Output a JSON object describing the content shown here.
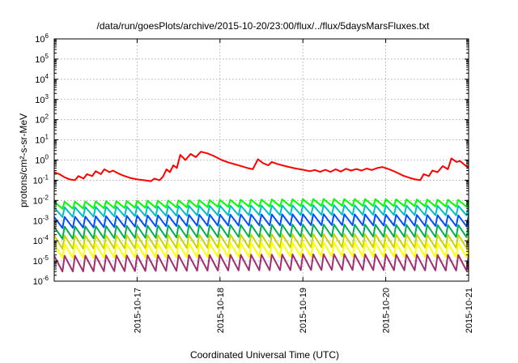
{
  "chart_data": {
    "type": "line",
    "title": "/data/run/goesPlots/archive/2015-10-20/23:00/flux/../flux/5daysMarsFluxes.txt",
    "xlabel": "Coordinated Universal Time (UTC)",
    "ylabel": "protons/cm²-s-sr-MeV",
    "x_range": [
      "2015-10-16 00:00",
      "2015-10-21 00:00"
    ],
    "x_ticks": [
      "2015-10-17",
      "2015-10-18",
      "2015-10-19",
      "2015-10-20",
      "2015-10-21"
    ],
    "y_scale": "log",
    "ylim": [
      1e-06,
      1000000.0
    ],
    "y_ticks": [
      {
        "base": "10",
        "exp": "-6"
      },
      {
        "base": "10",
        "exp": "-5"
      },
      {
        "base": "10",
        "exp": "-4"
      },
      {
        "base": "10",
        "exp": "-3"
      },
      {
        "base": "10",
        "exp": "-2"
      },
      {
        "base": "10",
        "exp": "-1"
      },
      {
        "base": "10",
        "exp": "0"
      },
      {
        "base": "10",
        "exp": "1"
      },
      {
        "base": "10",
        "exp": "2"
      },
      {
        "base": "10",
        "exp": "3"
      },
      {
        "base": "10",
        "exp": "4"
      },
      {
        "base": "10",
        "exp": "5"
      },
      {
        "base": "10",
        "exp": "6"
      }
    ],
    "grid": true,
    "series": [
      {
        "color": "#ff0000",
        "points": [
          [
            "2015-10-16 00:00",
            0.25
          ],
          [
            "2015-10-16 01:30",
            0.2
          ],
          [
            "2015-10-16 03:00",
            0.14
          ],
          [
            "2015-10-16 04:30",
            0.11
          ],
          [
            "2015-10-16 06:00",
            0.1
          ],
          [
            "2015-10-16 07:00",
            0.16
          ],
          [
            "2015-10-16 08:30",
            0.12
          ],
          [
            "2015-10-16 09:30",
            0.2
          ],
          [
            "2015-10-16 11:00",
            0.16
          ],
          [
            "2015-10-16 12:00",
            0.28
          ],
          [
            "2015-10-16 13:30",
            0.2
          ],
          [
            "2015-10-16 14:30",
            0.35
          ],
          [
            "2015-10-16 16:00",
            0.25
          ],
          [
            "2015-10-16 17:00",
            0.3
          ],
          [
            "2015-10-16 18:30",
            0.22
          ],
          [
            "2015-10-16 20:00",
            0.17
          ],
          [
            "2015-10-16 22:00",
            0.13
          ],
          [
            "2015-10-17 00:00",
            0.11
          ],
          [
            "2015-10-17 02:00",
            0.1
          ],
          [
            "2015-10-17 04:00",
            0.09
          ],
          [
            "2015-10-17 05:00",
            0.12
          ],
          [
            "2015-10-17 06:30",
            0.1
          ],
          [
            "2015-10-17 07:30",
            0.15
          ],
          [
            "2015-10-17 08:30",
            0.35
          ],
          [
            "2015-10-17 09:30",
            0.25
          ],
          [
            "2015-10-17 10:30",
            0.55
          ],
          [
            "2015-10-17 11:30",
            0.4
          ],
          [
            "2015-10-17 12:30",
            1.8
          ],
          [
            "2015-10-17 14:00",
            1.0
          ],
          [
            "2015-10-17 15:30",
            2.0
          ],
          [
            "2015-10-17 17:00",
            1.4
          ],
          [
            "2015-10-17 18:30",
            2.6
          ],
          [
            "2015-10-17 20:30",
            2.1
          ],
          [
            "2015-10-17 22:30",
            1.5
          ],
          [
            "2015-10-18 00:30",
            1.0
          ],
          [
            "2015-10-18 02:30",
            0.75
          ],
          [
            "2015-10-18 04:30",
            0.6
          ],
          [
            "2015-10-18 06:30",
            0.48
          ],
          [
            "2015-10-18 08:00",
            0.4
          ],
          [
            "2015-10-18 09:30",
            0.35
          ],
          [
            "2015-10-18 11:00",
            1.1
          ],
          [
            "2015-10-18 12:30",
            0.7
          ],
          [
            "2015-10-18 14:00",
            0.55
          ],
          [
            "2015-10-18 15:00",
            0.8
          ],
          [
            "2015-10-18 16:30",
            0.65
          ],
          [
            "2015-10-18 18:00",
            0.55
          ],
          [
            "2015-10-18 20:00",
            0.45
          ],
          [
            "2015-10-18 22:00",
            0.38
          ],
          [
            "2015-10-19 00:00",
            0.33
          ],
          [
            "2015-10-19 02:00",
            0.28
          ],
          [
            "2015-10-19 03:30",
            0.32
          ],
          [
            "2015-10-19 05:00",
            0.26
          ],
          [
            "2015-10-19 06:30",
            0.33
          ],
          [
            "2015-10-19 08:00",
            0.26
          ],
          [
            "2015-10-19 09:30",
            0.35
          ],
          [
            "2015-10-19 11:00",
            0.27
          ],
          [
            "2015-10-19 12:30",
            0.37
          ],
          [
            "2015-10-19 14:00",
            0.3
          ],
          [
            "2015-10-19 15:30",
            0.36
          ],
          [
            "2015-10-19 17:00",
            0.3
          ],
          [
            "2015-10-19 18:30",
            0.38
          ],
          [
            "2015-10-19 20:00",
            0.32
          ],
          [
            "2015-10-19 21:30",
            0.4
          ],
          [
            "2015-10-19 23:00",
            0.45
          ],
          [
            "2015-10-20 01:00",
            0.35
          ],
          [
            "2015-10-20 03:00",
            0.25
          ],
          [
            "2015-10-20 05:00",
            0.17
          ],
          [
            "2015-10-20 07:00",
            0.13
          ],
          [
            "2015-10-20 08:30",
            0.11
          ],
          [
            "2015-10-20 10:00",
            0.1
          ],
          [
            "2015-10-20 11:00",
            0.2
          ],
          [
            "2015-10-20 12:30",
            0.16
          ],
          [
            "2015-10-20 13:30",
            0.3
          ],
          [
            "2015-10-20 15:00",
            0.25
          ],
          [
            "2015-10-20 16:30",
            0.5
          ],
          [
            "2015-10-20 18:00",
            0.35
          ],
          [
            "2015-10-20 19:00",
            1.2
          ],
          [
            "2015-10-20 20:30",
            0.8
          ],
          [
            "2015-10-20 21:30",
            0.9
          ],
          [
            "2015-10-20 23:00",
            0.55
          ],
          [
            "2015-10-21 00:00",
            0.42
          ]
        ]
      },
      {
        "color": "#00ff00",
        "base": 0.0085,
        "amplitude": 2.2,
        "period_hours": 3,
        "trend": [
          [
            0,
            1.0
          ],
          [
            40,
            1.2
          ],
          [
            80,
            1.4
          ],
          [
            120,
            1.25
          ]
        ]
      },
      {
        "color": "#00c0c0",
        "base": 0.0045,
        "amplitude": 3.0,
        "period_hours": 3,
        "trend": [
          [
            0,
            1.0
          ],
          [
            40,
            1.2
          ],
          [
            80,
            1.3
          ],
          [
            120,
            1.2
          ]
        ]
      },
      {
        "color": "#0050ff",
        "base": 0.0015,
        "amplitude": 3.5,
        "period_hours": 3,
        "trend": [
          [
            0,
            1.0
          ],
          [
            40,
            1.3
          ],
          [
            80,
            1.4
          ],
          [
            120,
            1.2
          ]
        ]
      },
      {
        "color": "#00b050",
        "base": 0.0005,
        "amplitude": 4.0,
        "period_hours": 3,
        "trend": [
          [
            0,
            1.0
          ],
          [
            40,
            1.2
          ],
          [
            80,
            1.3
          ],
          [
            120,
            1.2
          ]
        ]
      },
      {
        "color": "#c8d400",
        "base": 0.00018,
        "amplitude": 4.5,
        "period_hours": 3,
        "trend": [
          [
            0,
            1.0
          ],
          [
            40,
            1.1
          ],
          [
            80,
            1.2
          ],
          [
            120,
            1.1
          ]
        ]
      },
      {
        "color": "#ffff00",
        "base": 7e-05,
        "amplitude": 5.0,
        "period_hours": 3,
        "trend": [
          [
            0,
            1.0
          ],
          [
            40,
            1.1
          ],
          [
            80,
            1.2
          ],
          [
            120,
            1.1
          ]
        ]
      },
      {
        "color": "#a03070",
        "base": 1.8e-05,
        "amplitude": 6.0,
        "period_hours": 3,
        "trend": [
          [
            0,
            1.0
          ],
          [
            40,
            1.1
          ],
          [
            80,
            1.2
          ],
          [
            120,
            1.1
          ]
        ]
      }
    ]
  }
}
